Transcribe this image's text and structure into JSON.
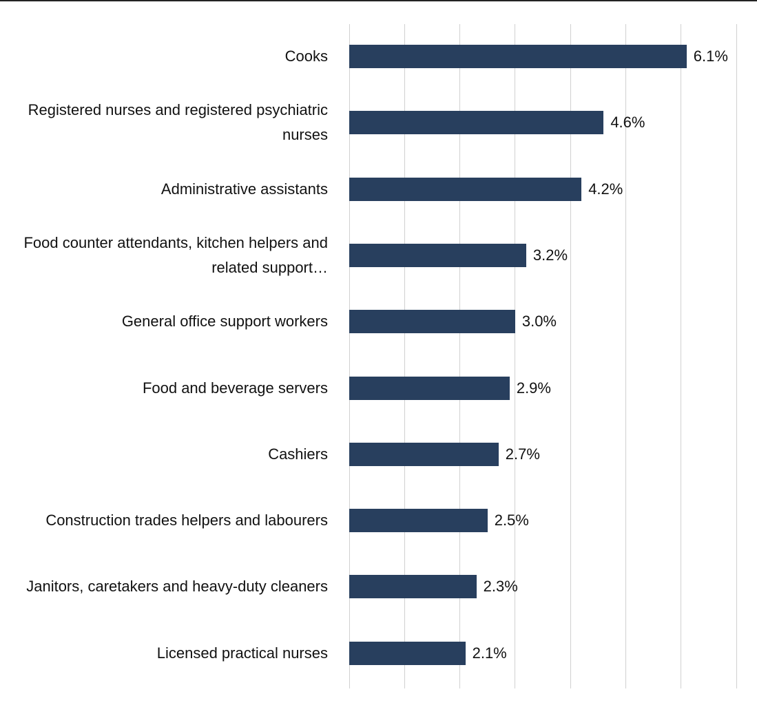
{
  "chart_data": {
    "type": "bar",
    "orientation": "horizontal",
    "categories": [
      "Cooks",
      "Registered nurses and registered psychiatric nurses",
      "Administrative assistants",
      "Food counter attendants, kitchen helpers and related support…",
      "General office support workers",
      "Food and beverage servers",
      "Cashiers",
      "Construction trades helpers and labourers",
      "Janitors, caretakers and heavy-duty cleaners",
      "Licensed practical nurses"
    ],
    "values": [
      6.1,
      4.6,
      4.2,
      3.2,
      3.0,
      2.9,
      2.7,
      2.5,
      2.3,
      2.1
    ],
    "value_labels": [
      "6.1%",
      "4.6%",
      "4.2%",
      "3.2%",
      "3.0%",
      "2.9%",
      "2.7%",
      "2.5%",
      "2.3%",
      "2.1%"
    ],
    "color": "#283f5e",
    "xlim": [
      0,
      7
    ],
    "xticks": [
      0,
      1,
      2,
      3,
      4,
      5,
      6,
      7
    ],
    "grid": true
  }
}
